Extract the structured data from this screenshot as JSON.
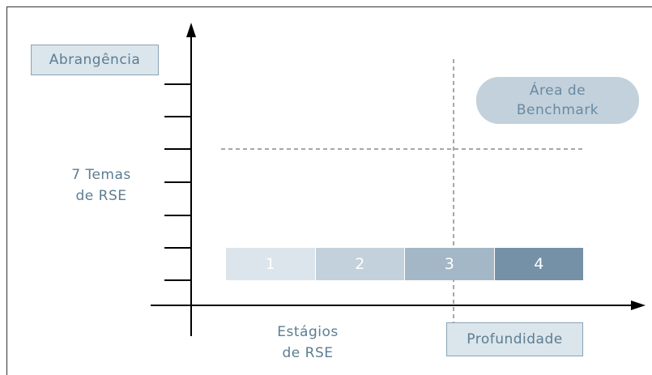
{
  "labels": {
    "breadth": "Abrangência",
    "themes_line1": "7 Temas",
    "themes_line2": "de RSE",
    "stages_line1": "Estágios",
    "stages_line2": "de RSE",
    "depth": "Profundidade",
    "benchmark_line1": "Área de",
    "benchmark_line2": "Benchmark"
  },
  "stages": [
    {
      "label": "1",
      "color": "#dce5eb"
    },
    {
      "label": "2",
      "color": "#c3d1dc"
    },
    {
      "label": "3",
      "color": "#a3b7c6"
    },
    {
      "label": "4",
      "color": "#7591a8"
    }
  ],
  "colors": {
    "axis": "#000000",
    "dashed": "#8a8a8a",
    "text": "#5d7d92"
  }
}
